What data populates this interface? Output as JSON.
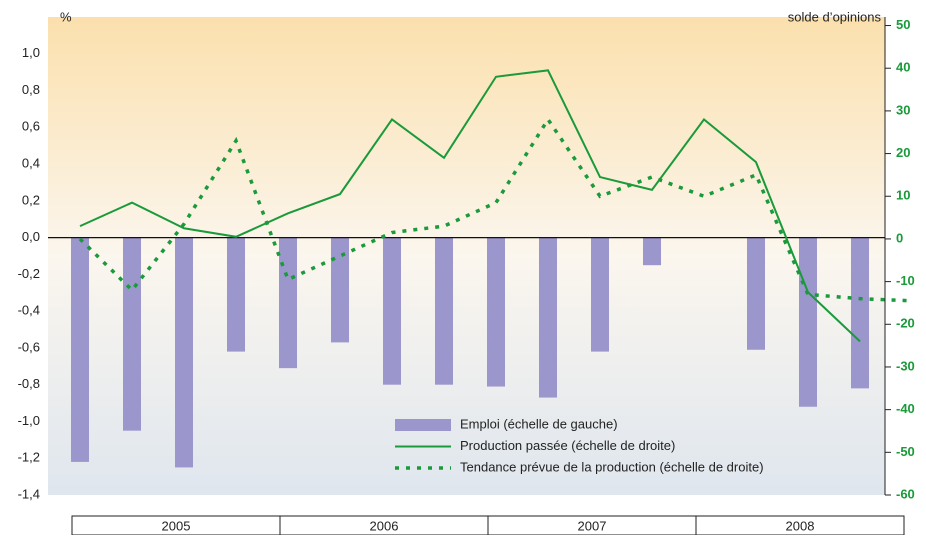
{
  "chart_data": {
    "type": "bar-line",
    "left_axis_unit": "%",
    "right_axis_unit": "solde d’opinions",
    "groups": [
      "2005",
      "2006",
      "2007",
      "2008"
    ],
    "ylim": [
      -1.4,
      1.2
    ],
    "yticks": [
      {
        "value": -1.4,
        "label": "-1,4"
      },
      {
        "value": -1.2,
        "label": "-1,2"
      },
      {
        "value": -1.0,
        "label": "-1,0"
      },
      {
        "value": -0.8,
        "label": "-0,8"
      },
      {
        "value": -0.6,
        "label": "-0,6"
      },
      {
        "value": -0.4,
        "label": "-0,4"
      },
      {
        "value": -0.2,
        "label": "-0,2"
      },
      {
        "value": 0,
        "label": "0,0"
      },
      {
        "value": 0.2,
        "label": "0,2"
      },
      {
        "value": 0.4,
        "label": "0,4"
      },
      {
        "value": 0.6,
        "label": "0,6"
      },
      {
        "value": 0.8,
        "label": "0,8"
      },
      {
        "value": 1.0,
        "label": "1,0"
      }
    ],
    "y2lim": [
      -60,
      52
    ],
    "y2ticks": [
      -60,
      -50,
      -40,
      -30,
      -20,
      -10,
      0,
      10,
      20,
      30,
      40,
      50
    ],
    "series": [
      {
        "name": "Emploi (échelle de gauche)",
        "kind": "bar",
        "color": "#9b96cc",
        "values": [
          -1.22,
          -1.05,
          -1.25,
          -0.62,
          -0.71,
          -0.57,
          -0.8,
          -0.8,
          -0.81,
          -0.87,
          -0.62,
          -0.15,
          0,
          -0.61,
          -0.92,
          -0.82,
          null
        ]
      },
      {
        "name": "Production passée (échelle de droite)",
        "kind": "line",
        "axis": "y2",
        "color": "#1a9a3a",
        "values": [
          3,
          8.5,
          2.5,
          0.5,
          6,
          10.5,
          28,
          19,
          38,
          39.5,
          14.5,
          11.5,
          28,
          18,
          -12.5,
          -24,
          null
        ]
      },
      {
        "name": "Tendance prévue de la production (échelle de droite)",
        "kind": "dotted",
        "axis": "y2",
        "color": "#1a9a3a",
        "values": [
          0,
          -12,
          3.5,
          23,
          -9.5,
          -4,
          1.5,
          3,
          8.5,
          28,
          10,
          14.5,
          10,
          15,
          -13,
          -14,
          -14.5
        ]
      }
    ]
  }
}
